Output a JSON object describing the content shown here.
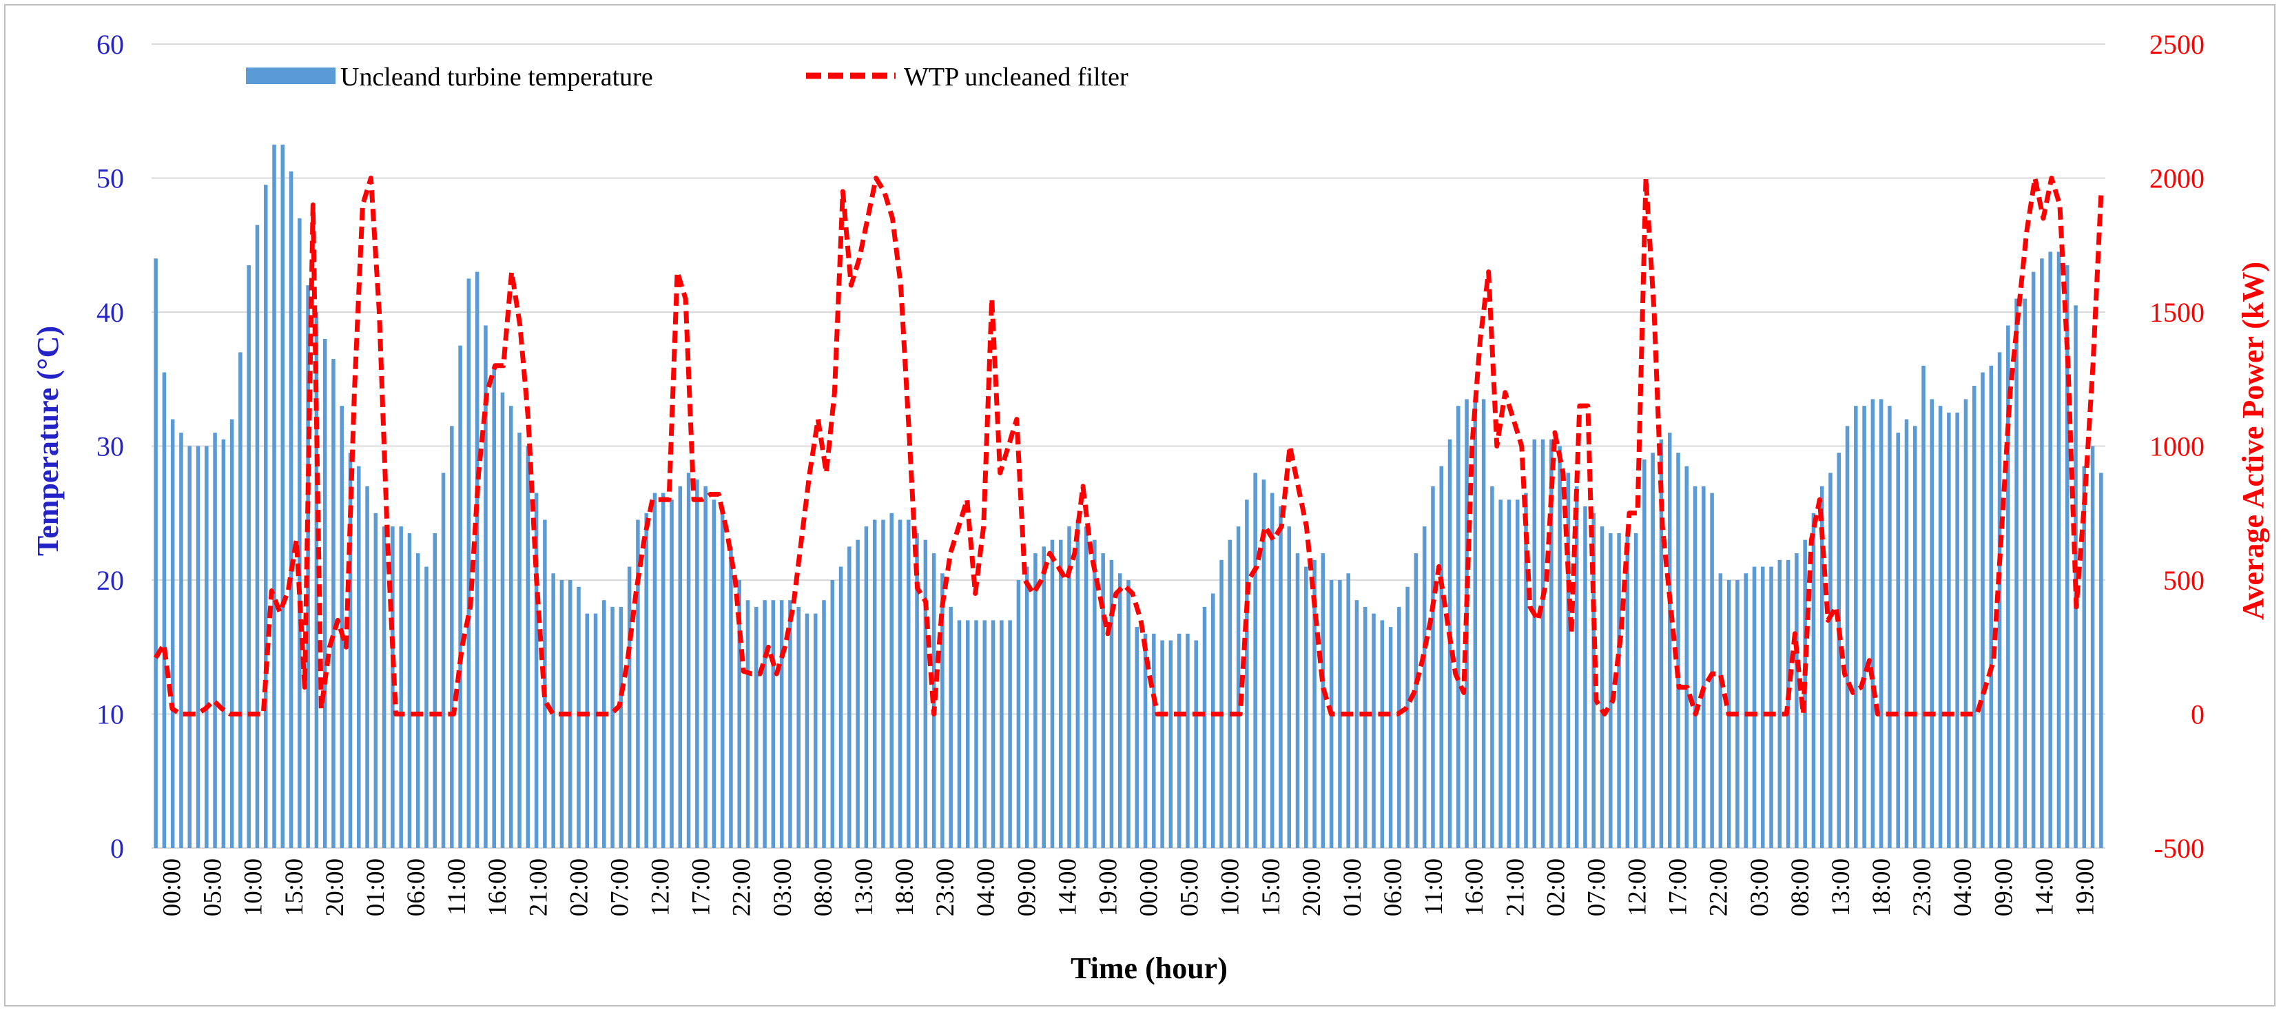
{
  "chart_data": {
    "type": "bar+line",
    "title": "",
    "xlabel": "Time (hour)",
    "ylabel_left": "Temperature (°C)",
    "ylabel_right": "Average Active Power (kW)",
    "ylim_left": [
      0,
      60
    ],
    "ylim_right": [
      -500,
      2500
    ],
    "yticks_left": [
      "0",
      "10",
      "20",
      "30",
      "40",
      "50",
      "60"
    ],
    "yticks_right": [
      "-500",
      "0",
      "500",
      "1000",
      "1500",
      "2000",
      "2500"
    ],
    "xticks": [
      "00:00",
      "05:00",
      "10:00",
      "15:00",
      "20:00",
      "01:00",
      "06:00",
      "11:00",
      "16:00",
      "21:00",
      "02:00",
      "07:00",
      "12:00",
      "17:00",
      "22:00",
      "03:00",
      "08:00",
      "13:00",
      "18:00",
      "23:00",
      "04:00",
      "09:00",
      "14:00",
      "19:00",
      "00:00",
      "05:00",
      "10:00",
      "15:00",
      "20:00",
      "01:00",
      "06:00",
      "11:00",
      "16:00",
      "21:00",
      "02:00",
      "07:00",
      "12:00",
      "17:00",
      "22:00",
      "03:00",
      "08:00",
      "13:00",
      "18:00",
      "23:00",
      "04:00",
      "09:00",
      "14:00",
      "19:00"
    ],
    "grid": "horizontal",
    "legend_position": "top-left",
    "colors": {
      "bars": "#5b9bd5",
      "line": "#ff0000",
      "left_axis": "#2323c8",
      "right_axis": "#ff0000",
      "grid": "#d9d9d9"
    },
    "series": [
      {
        "name": "Uncleand turbine temperature",
        "axis": "left",
        "kind": "bar",
        "values": [
          44,
          35.5,
          32,
          31,
          30,
          30,
          30,
          31,
          30.5,
          32,
          37,
          43.5,
          46.5,
          49.5,
          52.5,
          52.5,
          50.5,
          47,
          42,
          40,
          38,
          36.5,
          33,
          29.5,
          28.5,
          27,
          25,
          24,
          24,
          24,
          23.5,
          22,
          21,
          23.5,
          28,
          31.5,
          37.5,
          42.5,
          43,
          39,
          36,
          34,
          33,
          31,
          30,
          26.5,
          24.5,
          20.5,
          20,
          20,
          19.5,
          17.5,
          17.5,
          18.5,
          18,
          18,
          21,
          24.5,
          25,
          26.5,
          26.5,
          26,
          27,
          28,
          27.5,
          27,
          26,
          25,
          22.5,
          20,
          18.5,
          18,
          18.5,
          18.5,
          18.5,
          18.5,
          18,
          17.5,
          17.5,
          18.5,
          20,
          21,
          22.5,
          23,
          24,
          24.5,
          24.5,
          25,
          24.5,
          24.5,
          23.5,
          23,
          22,
          20.5,
          18,
          17,
          17,
          17,
          17,
          17,
          17,
          17,
          20,
          21,
          22,
          22.5,
          23,
          23,
          24,
          24.5,
          24,
          23,
          22,
          21.5,
          20.5,
          20,
          16.5,
          16,
          16,
          15.5,
          15.5,
          16,
          16,
          15.5,
          18,
          19,
          21.5,
          23,
          24,
          26,
          28,
          27.5,
          26.5,
          25.5,
          24,
          22,
          21,
          21.5,
          22,
          20,
          20,
          20.5,
          18.5,
          18,
          17.5,
          17,
          16.5,
          18,
          19.5,
          22,
          24,
          27,
          28.5,
          30.5,
          33,
          33.5,
          33.5,
          33.5,
          27,
          26,
          26,
          26,
          26.5,
          30.5,
          30.5,
          30.5,
          30,
          28,
          27,
          25.5,
          25,
          24,
          23.5,
          23.5,
          23.5,
          23.5,
          29,
          29.5,
          30.5,
          31,
          29.5,
          28.5,
          27,
          27,
          26.5,
          20.5,
          20,
          20,
          20.5,
          21,
          21,
          21,
          21.5,
          21.5,
          22,
          23,
          25,
          27,
          28,
          29.5,
          31.5,
          33,
          33,
          33.5,
          33.5,
          33,
          31,
          32,
          31.5,
          36,
          33.5,
          33,
          32.5,
          32.5,
          33.5,
          34.5,
          35.5,
          36,
          37,
          39,
          41,
          41,
          43,
          44,
          44.5,
          44.5,
          43.5,
          40.5,
          28.5,
          30,
          28
        ]
      },
      {
        "name": "WTP uncleaned filter",
        "axis": "right",
        "kind": "line",
        "dash": "dashed",
        "values": [
          210,
          260,
          20,
          0,
          0,
          0,
          20,
          50,
          20,
          0,
          0,
          0,
          0,
          0,
          460,
          380,
          460,
          650,
          100,
          1900,
          20,
          250,
          350,
          250,
          1200,
          1900,
          2000,
          1500,
          650,
          0,
          0,
          0,
          0,
          0,
          0,
          0,
          0,
          250,
          400,
          900,
          1200,
          1300,
          1300,
          1650,
          1450,
          1100,
          500,
          50,
          0,
          0,
          0,
          0,
          0,
          0,
          0,
          0,
          30,
          200,
          450,
          650,
          800,
          800,
          800,
          1650,
          1550,
          800,
          800,
          820,
          820,
          680,
          500,
          160,
          150,
          150,
          250,
          150,
          250,
          400,
          650,
          900,
          1100,
          900,
          1200,
          1950,
          1600,
          1700,
          1850,
          2000,
          1950,
          1850,
          1600,
          1050,
          470,
          420,
          0,
          400,
          600,
          700,
          800,
          450,
          700,
          1550,
          900,
          1000,
          1100,
          500,
          450,
          500,
          600,
          550,
          500,
          600,
          850,
          600,
          450,
          300,
          450,
          480,
          450,
          350,
          150,
          0,
          0,
          0,
          0,
          0,
          0,
          0,
          0,
          0,
          0,
          0,
          500,
          550,
          700,
          650,
          700,
          1000,
          850,
          700,
          400,
          100,
          0,
          0,
          0,
          0,
          0,
          0,
          0,
          0,
          0,
          20,
          80,
          200,
          350,
          550,
          350,
          150,
          80,
          1000,
          1400,
          1650,
          1000,
          1200,
          1100,
          1000,
          400,
          350,
          500,
          1050,
          900,
          300,
          1150,
          1150,
          50,
          0,
          50,
          300,
          750,
          750,
          2000,
          1500,
          700,
          400,
          100,
          100,
          0,
          100,
          150,
          150,
          0,
          0,
          0,
          0,
          0,
          0,
          0,
          0,
          300,
          0,
          650,
          800,
          350,
          400,
          150,
          80,
          100,
          200,
          0,
          0,
          0,
          0,
          0,
          0,
          0,
          0,
          0,
          0,
          0,
          0,
          0,
          100,
          200,
          700,
          1200,
          1500,
          1800,
          2000,
          1850,
          2000,
          1900,
          1300,
          400,
          800,
          1300,
          1950
        ]
      }
    ]
  }
}
